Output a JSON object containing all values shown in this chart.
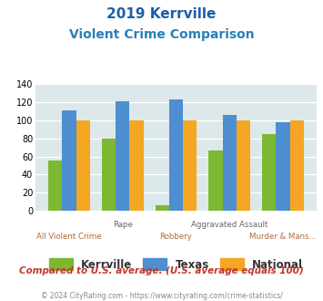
{
  "title_line1": "2019 Kerrville",
  "title_line2": "Violent Crime Comparison",
  "categories": [
    "All Violent Crime",
    "Rape",
    "Robbery",
    "Aggravated Assault",
    "Murder & Mans..."
  ],
  "kerrville": [
    56,
    80,
    6,
    67,
    85
  ],
  "texas": [
    111,
    121,
    123,
    106,
    98
  ],
  "national": [
    100,
    100,
    100,
    100,
    100
  ],
  "color_kerrville": "#7db832",
  "color_texas": "#4d8fd1",
  "color_national": "#f5a623",
  "color_title1": "#1a5fa8",
  "color_title2": "#2980b9",
  "color_bg": "#dce8ea",
  "color_note": "#c0392b",
  "color_footer": "#7f8c8d",
  "ylim": [
    0,
    140
  ],
  "yticks": [
    0,
    20,
    40,
    60,
    80,
    100,
    120,
    140
  ],
  "cat_labels_top": [
    "",
    "Rape",
    "",
    "Aggravated Assault",
    ""
  ],
  "cat_labels_bot": [
    "All Violent Crime",
    "",
    "Robbery",
    "",
    "Murder & Mans..."
  ],
  "note": "Compared to U.S. average. (U.S. average equals 100)",
  "footer": "© 2024 CityRating.com - https://www.cityrating.com/crime-statistics/"
}
